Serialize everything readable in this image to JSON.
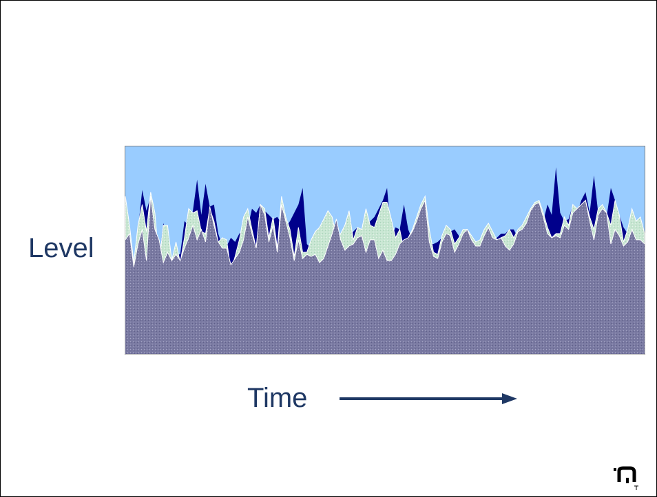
{
  "chart_data": {
    "type": "area",
    "title": "",
    "xlabel": "Time",
    "ylabel": "Level",
    "xlim": [
      0,
      123
    ],
    "ylim": [
      0,
      100
    ],
    "grid": false,
    "legend": "none",
    "series": [
      {
        "color": "#00008b",
        "values": [
          57,
          63,
          43,
          60,
          79,
          69,
          76,
          61,
          46,
          63,
          57,
          43,
          48,
          48,
          64,
          62,
          69,
          84,
          67,
          82,
          71,
          72,
          58,
          52,
          52,
          56,
          54,
          58,
          60,
          61,
          70,
          68,
          72,
          69,
          67,
          65,
          66,
          63,
          61,
          64,
          68,
          72,
          80,
          53,
          51,
          55,
          55,
          57,
          56,
          53,
          51,
          53,
          55,
          57,
          59,
          61,
          60,
          62,
          64,
          66,
          70,
          74,
          80,
          56,
          61,
          60,
          72,
          60,
          55,
          57,
          56,
          55,
          53,
          53,
          54,
          56,
          55,
          59,
          60,
          57,
          55,
          55,
          54,
          54,
          52,
          52,
          54,
          54,
          56,
          58,
          58,
          60,
          60,
          56,
          56,
          58,
          60,
          60,
          62,
          64,
          72,
          67,
          90,
          68,
          64,
          65,
          72,
          68,
          74,
          78,
          68,
          86,
          68,
          72,
          66,
          80,
          74,
          67,
          61,
          58,
          55,
          60,
          58,
          52
        ]
      },
      {
        "color": "#c8e6d2",
        "values": [
          76,
          62,
          44,
          62,
          72,
          59,
          78,
          68,
          44,
          62,
          62,
          45,
          54,
          44,
          56,
          70,
          68,
          69,
          59,
          58,
          70,
          64,
          54,
          56,
          55,
          40,
          47,
          55,
          66,
          70,
          60,
          51,
          72,
          70,
          56,
          66,
          51,
          76,
          66,
          60,
          47,
          61,
          49,
          49,
          55,
          59,
          61,
          65,
          69,
          66,
          56,
          58,
          62,
          69,
          55,
          61,
          60,
          70,
          62,
          61,
          67,
          73,
          73,
          65,
          56,
          60,
          50,
          56,
          60,
          66,
          72,
          76,
          60,
          49,
          48,
          57,
          62,
          60,
          53,
          56,
          60,
          60,
          57,
          54,
          55,
          60,
          63,
          59,
          55,
          56,
          57,
          60,
          56,
          60,
          62,
          66,
          70,
          73,
          74,
          68,
          61,
          56,
          58,
          58,
          66,
          62,
          72,
          70,
          72,
          74,
          66,
          60,
          70,
          72,
          68,
          62,
          74,
          67,
          54,
          60,
          70,
          64,
          66,
          58
        ]
      },
      {
        "color": "#7a7aa2",
        "values": [
          55,
          58,
          42,
          53,
          60,
          45,
          76,
          60,
          55,
          44,
          49,
          45,
          48,
          45,
          51,
          56,
          62,
          55,
          60,
          54,
          71,
          62,
          54,
          51,
          51,
          43,
          46,
          49,
          55,
          66,
          58,
          51,
          72,
          67,
          54,
          62,
          49,
          72,
          64,
          56,
          45,
          55,
          46,
          48,
          47,
          48,
          44,
          46,
          52,
          58,
          65,
          55,
          50,
          52,
          53,
          56,
          57,
          49,
          55,
          55,
          46,
          50,
          45,
          45,
          48,
          53,
          55,
          56,
          59,
          64,
          70,
          74,
          54,
          47,
          46,
          54,
          58,
          57,
          49,
          53,
          58,
          60,
          55,
          52,
          52,
          57,
          61,
          56,
          55,
          56,
          52,
          50,
          53,
          59,
          60,
          63,
          69,
          72,
          73,
          66,
          58,
          56,
          57,
          56,
          62,
          60,
          68,
          70,
          72,
          74,
          64,
          55,
          67,
          70,
          68,
          53,
          60,
          57,
          52,
          54,
          60,
          55,
          55,
          53
        ]
      }
    ]
  }
}
